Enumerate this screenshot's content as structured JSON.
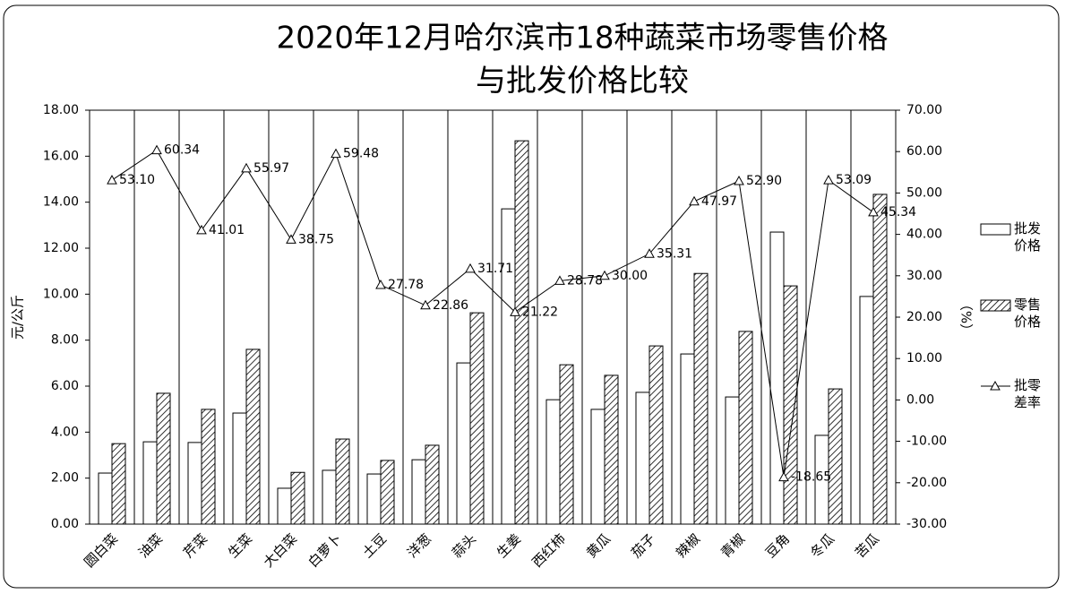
{
  "chart_data": {
    "type": "bar_line",
    "title": [
      "2020年12月哈尔滨市18种蔬菜市场零售价格",
      "与批发价格比较"
    ],
    "y_label": "元/公斤",
    "y2_label": "（%）",
    "categories": [
      "圆白菜",
      "油菜",
      "芹菜",
      "生菜",
      "大白菜",
      "白萝卜",
      "土豆",
      "洋葱",
      "蒜头",
      "生姜",
      "西红柿",
      "黄瓜",
      "茄子",
      "辣椒",
      "青椒",
      "豆角",
      "冬瓜",
      "苦瓜"
    ],
    "series": [
      {
        "name": "批发价格",
        "type": "bar",
        "color": "#ffffff",
        "values": [
          2.22,
          3.58,
          3.55,
          4.83,
          1.56,
          2.34,
          2.18,
          2.8,
          7.01,
          13.71,
          5.41,
          4.99,
          5.73,
          7.4,
          5.53,
          12.7,
          3.86,
          9.9
        ]
      },
      {
        "name": "零售价格",
        "type": "bar",
        "color": "#ffffff",
        "pattern": "diagonal",
        "values": [
          3.5,
          5.69,
          4.99,
          7.6,
          2.25,
          3.7,
          2.77,
          3.43,
          9.19,
          16.67,
          6.93,
          6.47,
          7.75,
          10.9,
          8.38,
          10.36,
          5.88,
          14.34
        ]
      },
      {
        "name": "批零差率",
        "type": "line",
        "axis": "y2",
        "color": "#000000",
        "marker": "triangle",
        "values": [
          53.1,
          60.34,
          41.01,
          55.97,
          38.75,
          59.48,
          27.78,
          22.86,
          31.71,
          21.22,
          28.78,
          30,
          35.31,
          47.97,
          52.9,
          -18.65,
          53.09,
          45.34
        ],
        "value_labels": [
          "53.10",
          "60.34",
          "41.01",
          "55.97",
          "38.75",
          "59.48",
          "27.78",
          "22.86",
          "31.71",
          "21.22",
          "28.78",
          "30.00",
          "35.31",
          "47.97",
          "52.90",
          "-18.65",
          "53.09",
          "45.34"
        ]
      }
    ],
    "ylim": [
      0,
      18
    ],
    "yticks": [
      {
        "value": 0,
        "label": "0.00"
      },
      {
        "value": 2,
        "label": "2.00"
      },
      {
        "value": 4,
        "label": "4.00"
      },
      {
        "value": 6,
        "label": "6.00"
      },
      {
        "value": 8,
        "label": "8.00"
      },
      {
        "value": 10,
        "label": "10.00"
      },
      {
        "value": 12,
        "label": "12.00"
      },
      {
        "value": 14,
        "label": "14.00"
      },
      {
        "value": 16,
        "label": "16.00"
      },
      {
        "value": 18,
        "label": "18.00"
      }
    ],
    "y2lim": [
      -30,
      70
    ],
    "y2ticks": [
      {
        "value": -30,
        "label": "-30.00"
      },
      {
        "value": -20,
        "label": "-20.00"
      },
      {
        "value": -10,
        "label": "-10.00"
      },
      {
        "value": 0,
        "label": "0.00"
      },
      {
        "value": 10,
        "label": "10.00"
      },
      {
        "value": 20,
        "label": "20.00"
      },
      {
        "value": 30,
        "label": "30.00"
      },
      {
        "value": 40,
        "label": "40.00"
      },
      {
        "value": 50,
        "label": "50.00"
      },
      {
        "value": 60,
        "label": "60.00"
      },
      {
        "value": 70,
        "label": "70.00"
      }
    ],
    "grid": "vertical",
    "legend": "right"
  }
}
